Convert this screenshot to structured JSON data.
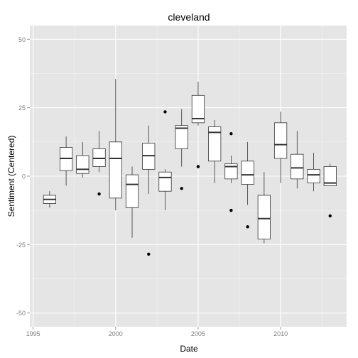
{
  "chart_data": {
    "type": "boxplot",
    "title": "cleveland",
    "xlabel": "Date",
    "ylabel": "Sentiment (Centered)",
    "xlim": [
      1994.8,
      2014.0
    ],
    "ylim": [
      -55,
      55
    ],
    "x_ticks": [
      1995,
      2000,
      2005,
      2010
    ],
    "x_tick_labels": [
      "1995",
      "2000",
      "2005",
      "2010"
    ],
    "y_ticks": [
      -50,
      -25,
      0,
      25,
      50
    ],
    "y_tick_labels": [
      "-50",
      "-25",
      "0",
      "25",
      "50"
    ],
    "grid": true,
    "boxes": [
      {
        "x": 1996,
        "lower": -11.5,
        "q1": -10,
        "median": -8.5,
        "q3": -7,
        "upper": -5.5,
        "outliers": []
      },
      {
        "x": 1997,
        "lower": -3.5,
        "q1": 2,
        "median": 6.5,
        "q3": 10.5,
        "upper": 14.5,
        "outliers": []
      },
      {
        "x": 1998,
        "lower": -0.5,
        "q1": 1,
        "median": 2.5,
        "q3": 7.5,
        "upper": 12.5,
        "outliers": []
      },
      {
        "x": 1999,
        "lower": 1.5,
        "q1": 3.5,
        "median": 6.5,
        "q3": 10,
        "upper": 16.5,
        "outliers": [
          -6.5
        ]
      },
      {
        "x": 2000,
        "lower": -12.5,
        "q1": -8,
        "median": 6.5,
        "q3": 12.5,
        "upper": 35.5,
        "outliers": []
      },
      {
        "x": 2001,
        "lower": -22.5,
        "q1": -11.5,
        "median": -3,
        "q3": 0.5,
        "upper": 3.5,
        "outliers": []
      },
      {
        "x": 2002,
        "lower": -6.5,
        "q1": 2.5,
        "median": 7.5,
        "q3": 12,
        "upper": 18.5,
        "outliers": [
          -28.5
        ]
      },
      {
        "x": 2003,
        "lower": -12.5,
        "q1": -5.5,
        "median": -0.5,
        "q3": 1.5,
        "upper": 2.5,
        "outliers": [
          23.5
        ]
      },
      {
        "x": 2004,
        "lower": 3.5,
        "q1": 10,
        "median": 17.5,
        "q3": 18.5,
        "upper": 24.5,
        "outliers": [
          -4.5
        ]
      },
      {
        "x": 2005,
        "lower": 18.5,
        "q1": 19.5,
        "median": 21,
        "q3": 29.5,
        "upper": 34.5,
        "outliers": [
          3.5
        ]
      },
      {
        "x": 2006,
        "lower": -2.5,
        "q1": 5.5,
        "median": 16,
        "q3": 18,
        "upper": 20.5,
        "outliers": []
      },
      {
        "x": 2007,
        "lower": -2.5,
        "q1": -1,
        "median": 3.5,
        "q3": 4.5,
        "upper": 7.5,
        "outliers": [
          -12.5,
          15.5
        ]
      },
      {
        "x": 2008,
        "lower": -10.5,
        "q1": -3,
        "median": 0.5,
        "q3": 5.5,
        "upper": 12.5,
        "outliers": [
          -18.5
        ]
      },
      {
        "x": 2009,
        "lower": -24.5,
        "q1": -23,
        "median": -15.5,
        "q3": -7,
        "upper": 1.5,
        "outliers": []
      },
      {
        "x": 2010,
        "lower": -2.5,
        "q1": 6.5,
        "median": 11.5,
        "q3": 19.5,
        "upper": 23.5,
        "outliers": []
      },
      {
        "x": 2011,
        "lower": -4.5,
        "q1": -1,
        "median": 3,
        "q3": 8,
        "upper": 16.5,
        "outliers": []
      },
      {
        "x": 2012,
        "lower": -5.5,
        "q1": -2.5,
        "median": 0.5,
        "q3": 2.5,
        "upper": 8.5,
        "outliers": []
      },
      {
        "x": 2013,
        "lower": -3.5,
        "q1": -3.5,
        "median": -2.5,
        "q3": 3.5,
        "upper": 4.5,
        "outliers": [
          -14.5
        ]
      }
    ]
  },
  "colors": {
    "panel_bg": "#e5e5e5",
    "grid_major": "#ffffff",
    "grid_minor": "#f2f2f2",
    "box_fill": "#ffffff",
    "box_stroke": "#333333",
    "point": "#000000",
    "tick_text": "#7f7f7f",
    "title_text": "#000000"
  }
}
